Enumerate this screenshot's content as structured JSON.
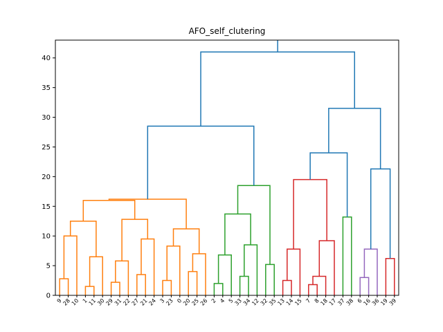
{
  "chart_data": {
    "type": "dendrogram",
    "title": "AFO_self_clutering",
    "xlabel": "",
    "ylabel": "",
    "ylim": [
      0,
      43
    ],
    "yticks": [
      0,
      5,
      10,
      15,
      20,
      25,
      30,
      35,
      40
    ],
    "leaf_labels": [
      "9",
      "28",
      "10",
      "1",
      "11",
      "30",
      "29",
      "31",
      "22",
      "27",
      "21",
      "24",
      "3",
      "23",
      "0",
      "20",
      "25",
      "26",
      "2",
      "4",
      "5",
      "33",
      "34",
      "12",
      "32",
      "35",
      "13",
      "14",
      "15",
      "7",
      "8",
      "18",
      "17",
      "37",
      "38",
      "6",
      "16",
      "36",
      "19",
      "39"
    ],
    "cluster_colors": {
      "link_above": "#1f77b4",
      "orange_cluster": "#ff7f0e",
      "green_cluster": "#2ca02c",
      "red_cluster": "#d62728",
      "purple_cluster": "#9467bd"
    },
    "notable_merge_heights": [
      43,
      41,
      36,
      35,
      34.5,
      33,
      32.5,
      31.5,
      29,
      28.5,
      24,
      21.3,
      19.5,
      19,
      18.5,
      16
    ]
  }
}
